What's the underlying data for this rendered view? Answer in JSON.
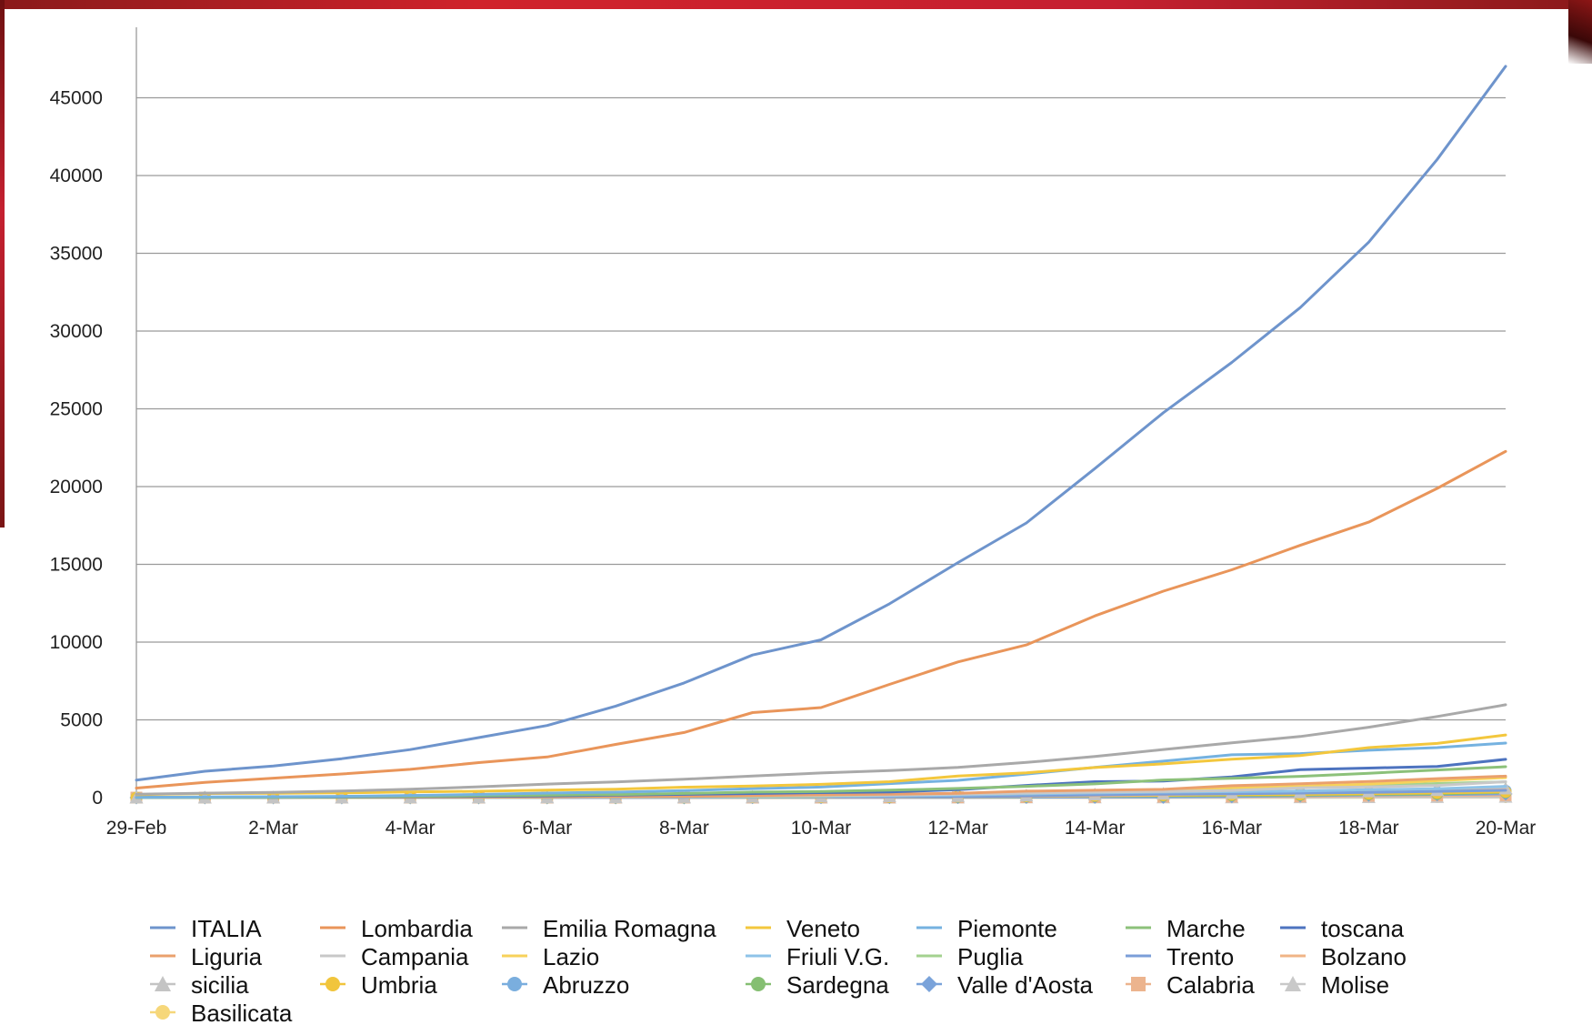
{
  "chart_data": {
    "type": "line",
    "title": "",
    "xlabel": "",
    "ylabel": "",
    "ylim": [
      0,
      50000
    ],
    "yticks": [
      0,
      5000,
      10000,
      15000,
      20000,
      25000,
      30000,
      35000,
      40000,
      45000
    ],
    "x_tick_labels": [
      "29-Feb",
      "2-Mar",
      "4-Mar",
      "6-Mar",
      "8-Mar",
      "10-Mar",
      "12-Mar",
      "14-Mar",
      "16-Mar",
      "18-Mar",
      "20-Mar"
    ],
    "x": [
      "29-Feb",
      "1-Mar",
      "2-Mar",
      "3-Mar",
      "4-Mar",
      "5-Mar",
      "6-Mar",
      "7-Mar",
      "8-Mar",
      "9-Mar",
      "10-Mar",
      "11-Mar",
      "12-Mar",
      "13-Mar",
      "14-Mar",
      "15-Mar",
      "16-Mar",
      "17-Mar",
      "18-Mar",
      "19-Mar",
      "20-Mar"
    ],
    "grid": true,
    "legend_position": "bottom",
    "series": [
      {
        "name": "ITALIA",
        "color": "#6e94cc",
        "marker": "none",
        "values": [
          1128,
          1694,
          2036,
          2502,
          3089,
          3858,
          4636,
          5883,
          7375,
          9172,
          10149,
          12462,
          15113,
          17660,
          21157,
          24747,
          27980,
          31506,
          35713,
          41035,
          47021
        ]
      },
      {
        "name": "Lombardia",
        "color": "#e9955a",
        "marker": "none",
        "values": [
          615,
          984,
          1254,
          1520,
          1820,
          2251,
          2612,
          3420,
          4189,
          5469,
          5791,
          7280,
          8725,
          9820,
          11685,
          13272,
          14649,
          16220,
          17713,
          19884,
          22264
        ]
      },
      {
        "name": "Emilia Romagna",
        "color": "#a9a9a9",
        "marker": "none",
        "values": [
          217,
          285,
          335,
          420,
          544,
          698,
          870,
          1010,
          1180,
          1386,
          1586,
          1739,
          1947,
          2263,
          2644,
          3093,
          3522,
          3931,
          4525,
          5214,
          5968
        ]
      },
      {
        "name": "Veneto",
        "color": "#f3c73d",
        "marker": "none",
        "values": [
          191,
          263,
          273,
          307,
          360,
          407,
          488,
          543,
          670,
          744,
          856,
          1023,
          1384,
          1595,
          1937,
          2172,
          2473,
          2704,
          3214,
          3484,
          4031
        ]
      },
      {
        "name": "Piemonte",
        "color": "#75b2e0",
        "marker": "none",
        "values": [
          11,
          49,
          56,
          82,
          143,
          207,
          293,
          350,
          453,
          580,
          680,
          900,
          1111,
          1516,
          1947,
          2344,
          2757,
          2831,
          3045,
          3214,
          3506
        ]
      },
      {
        "name": "Marche",
        "color": "#8cc17a",
        "marker": "none",
        "values": [
          6,
          11,
          25,
          61,
          84,
          124,
          163,
          199,
          271,
          355,
          394,
          479,
          592,
          725,
          881,
          1133,
          1242,
          1371,
          1568,
          1780,
          1991
        ]
      },
      {
        "name": "toscana",
        "color": "#4d73bf",
        "marker": "none",
        "values": [
          11,
          13,
          19,
          38,
          61,
          79,
          113,
          166,
          208,
          264,
          320,
          364,
          508,
          781,
          1025,
          1066,
          1336,
          1793,
          1898,
          2001,
          2461
        ]
      },
      {
        "name": "Liguria",
        "color": "#eaa06d",
        "marker": "none",
        "values": [
          24,
          25,
          26,
          27,
          25,
          30,
          48,
          56,
          78,
          137,
          181,
          220,
          273,
          418,
          474,
          534,
          767,
          890,
          1033,
          1224,
          1378
        ]
      },
      {
        "name": "Campania",
        "color": "#c8c8c8",
        "marker": "none",
        "values": [
          17,
          17,
          30,
          31,
          31,
          44,
          68,
          81,
          101,
          120,
          153,
          156,
          220,
          292,
          359,
          400,
          460,
          623,
          682,
          785,
          1022
        ]
      },
      {
        "name": "Lazio",
        "color": "#f7d25a",
        "marker": "none",
        "values": [
          6,
          6,
          11,
          18,
          21,
          26,
          50,
          71,
          91,
          106,
          131,
          175,
          280,
          337,
          423,
          501,
          639,
          724,
          871,
          1088,
          1289
        ]
      },
      {
        "name": "Friuli V.G.",
        "color": "#8ec3e8",
        "marker": "none",
        "values": [
          0,
          0,
          13,
          18,
          18,
          19,
          29,
          36,
          51,
          63,
          79,
          115,
          165,
          239,
          297,
          352,
          387,
          423,
          513,
          576,
          728
        ]
      },
      {
        "name": "Puglia",
        "color": "#a3d28f",
        "marker": "none",
        "values": [
          3,
          3,
          3,
          6,
          9,
          12,
          22,
          32,
          43,
          48,
          70,
          127,
          183,
          241,
          345,
          475,
          576,
          639,
          755,
          907,
          1020
        ]
      },
      {
        "name": "Trento",
        "color": "#7b9ed8",
        "marker": "none",
        "values": [
          0,
          0,
          0,
          0,
          2,
          2,
          6,
          8,
          15,
          26,
          39,
          51,
          76,
          111,
          178,
          222,
          244,
          293,
          332,
          405,
          474
        ]
      },
      {
        "name": "Bolzano",
        "color": "#f0b486",
        "marker": "none",
        "values": [
          0,
          0,
          1,
          1,
          1,
          1,
          2,
          6,
          7,
          16,
          23,
          36,
          65,
          86,
          131,
          194,
          250,
          312,
          362,
          425,
          502
        ]
      },
      {
        "name": "sicilia",
        "color": "#c4c4c4",
        "marker": "triangle",
        "values": [
          4,
          5,
          6,
          7,
          11,
          15,
          23,
          30,
          38,
          54,
          72,
          86,
          104,
          140,
          208,
          252,
          299,
          342,
          405,
          484,
          586
        ]
      },
      {
        "name": "Umbria",
        "color": "#f1c53c",
        "marker": "circle",
        "values": [
          0,
          0,
          0,
          2,
          2,
          5,
          9,
          10,
          15,
          23,
          29,
          40,
          73,
          90,
          116,
          153,
          180,
          206,
          253,
          300,
          368
        ]
      },
      {
        "name": "Abruzzo",
        "color": "#7aaede",
        "marker": "circle",
        "values": [
          1,
          2,
          5,
          5,
          5,
          7,
          9,
          13,
          17,
          30,
          38,
          55,
          84,
          119,
          137,
          176,
          229,
          296,
          330,
          358,
          445
        ]
      },
      {
        "name": "Sardegna",
        "color": "#85bf72",
        "marker": "circle",
        "values": [
          0,
          0,
          0,
          0,
          1,
          2,
          2,
          7,
          9,
          19,
          24,
          37,
          51,
          75,
          98,
          119,
          145,
          164,
          213,
          237,
          339
        ]
      },
      {
        "name": "Valle d'Aosta",
        "color": "#7aa3da",
        "marker": "diamond",
        "values": [
          0,
          0,
          0,
          0,
          0,
          0,
          0,
          0,
          1,
          12,
          13,
          17,
          20,
          27,
          33,
          40,
          74,
          121,
          168,
          200,
          241
        ]
      },
      {
        "name": "Calabria",
        "color": "#ecb48e",
        "marker": "square",
        "values": [
          0,
          0,
          0,
          0,
          1,
          2,
          4,
          6,
          7,
          8,
          10,
          16,
          19,
          29,
          39,
          60,
          65,
          77,
          119,
          142,
          159
        ]
      },
      {
        "name": "Molise",
        "color": "#c9c9c9",
        "marker": "triangle",
        "values": [
          0,
          0,
          0,
          0,
          0,
          0,
          0,
          0,
          0,
          0,
          0,
          3,
          6,
          12,
          14,
          15,
          17,
          22,
          29,
          35,
          49
        ]
      },
      {
        "name": "Basilicata",
        "color": "#f6d77a",
        "marker": "circle",
        "values": [
          0,
          0,
          0,
          0,
          0,
          0,
          0,
          0,
          0,
          0,
          0,
          3,
          5,
          7,
          8,
          10,
          15,
          17,
          19,
          28,
          38
        ]
      }
    ]
  }
}
